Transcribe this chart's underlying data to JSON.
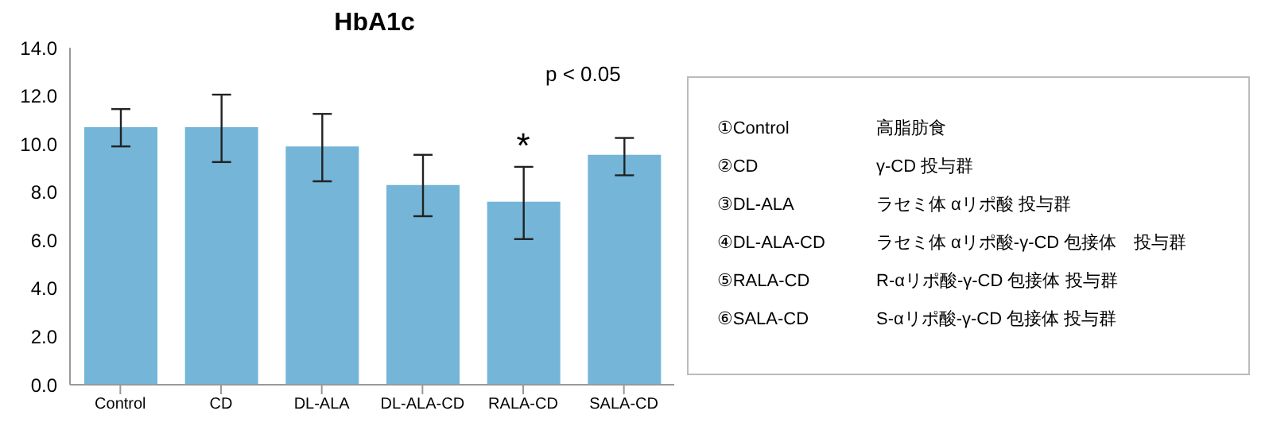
{
  "chart_data": {
    "type": "bar",
    "title": "HbA1c",
    "categories": [
      "Control",
      "CD",
      "DL-ALA",
      "DL-ALA-CD",
      "RALA-CD",
      "SALA-CD"
    ],
    "values": [
      10.7,
      10.7,
      9.9,
      8.3,
      7.6,
      9.55
    ],
    "errors": [
      [
        9.9,
        11.45
      ],
      [
        9.25,
        12.05
      ],
      [
        8.45,
        11.25
      ],
      [
        7.0,
        9.55
      ],
      [
        6.05,
        9.05
      ],
      [
        8.7,
        10.25
      ]
    ],
    "color": "#74b5d8",
    "ylim": [
      0,
      14
    ],
    "yticks": [
      {
        "value": 0,
        "label": "0.0"
      },
      {
        "value": 2,
        "label": "2.0"
      },
      {
        "value": 4,
        "label": "4.0"
      },
      {
        "value": 6,
        "label": "6.0"
      },
      {
        "value": 8,
        "label": "8.0"
      },
      {
        "value": 10,
        "label": "10.0"
      },
      {
        "value": 12,
        "label": "12.0"
      },
      {
        "value": 14,
        "label": "14.0"
      }
    ],
    "grid": false,
    "legend": false,
    "annotations": [
      "p < 0.05",
      {
        "text": "*",
        "x": "RALA-CD",
        "y": 9.05
      },
      "①Control",
      "高脂肪食",
      "②CD",
      "γ-CD 投与群",
      "③DL-ALA",
      "ラセミ体 αリポ酸 投与群",
      "④DL-ALA-CD",
      "ラセミ体 αリポ酸-γ-CD 包接体　投与群",
      "⑤RALA-CD",
      "R-αリポ酸-γ-CD 包接体 投与群",
      "⑥SALA-CD",
      "S-αリポ酸-γ-CD 包接体 投与群"
    ]
  }
}
